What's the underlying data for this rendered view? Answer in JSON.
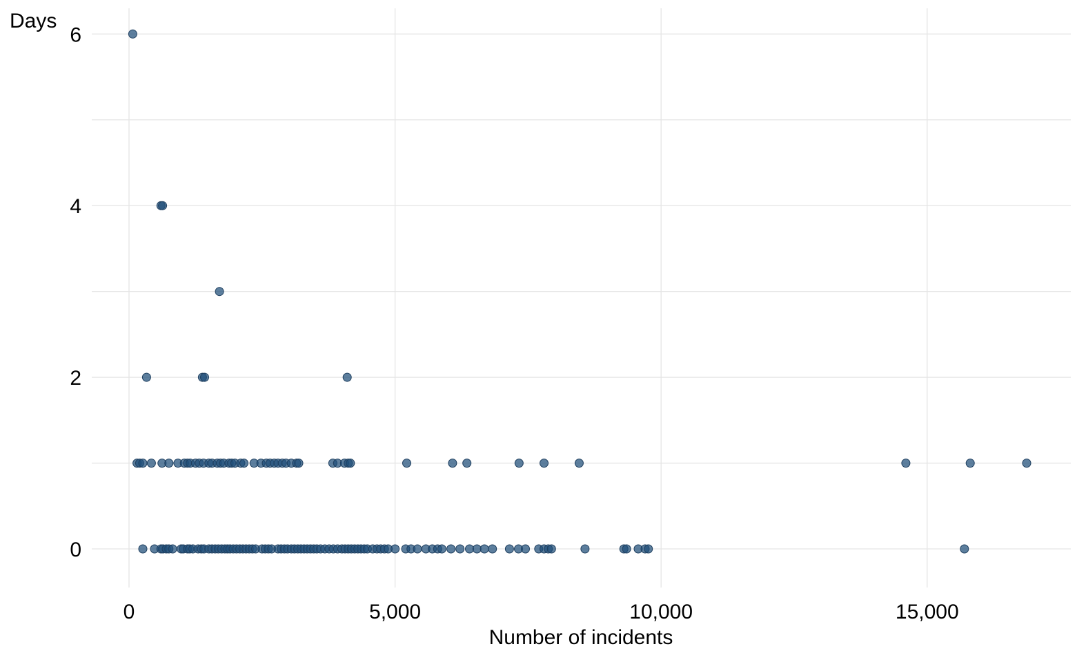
{
  "chart_data": {
    "type": "scatter",
    "title": "",
    "xlabel": "Number of incidents",
    "ylabel": "Days",
    "xlim": [
      -700,
      17700
    ],
    "ylim": [
      -0.45,
      6.3
    ],
    "x_ticks": [
      {
        "value": 0,
        "label": "0"
      },
      {
        "value": 5000,
        "label": "5,000"
      },
      {
        "value": 10000,
        "label": "10,000"
      },
      {
        "value": 15000,
        "label": "15,000"
      }
    ],
    "y_ticks": [
      {
        "value": 0,
        "label": "0"
      },
      {
        "value": 2,
        "label": "2"
      },
      {
        "value": 4,
        "label": "4"
      },
      {
        "value": 6,
        "label": "6"
      }
    ],
    "grid": true,
    "point_color": "#1f4e79",
    "series": [
      {
        "name": "",
        "points": [
          [
            70,
            6
          ],
          [
            600,
            4
          ],
          [
            630,
            4
          ],
          [
            1700,
            3
          ],
          [
            330,
            2
          ],
          [
            1380,
            2
          ],
          [
            1420,
            2
          ],
          [
            4100,
            2
          ],
          [
            150,
            1
          ],
          [
            200,
            1
          ],
          [
            260,
            1
          ],
          [
            420,
            1
          ],
          [
            620,
            1
          ],
          [
            750,
            1
          ],
          [
            920,
            1
          ],
          [
            1040,
            1
          ],
          [
            1100,
            1
          ],
          [
            1150,
            1
          ],
          [
            1250,
            1
          ],
          [
            1320,
            1
          ],
          [
            1400,
            1
          ],
          [
            1500,
            1
          ],
          [
            1560,
            1
          ],
          [
            1660,
            1
          ],
          [
            1720,
            1
          ],
          [
            1780,
            1
          ],
          [
            1880,
            1
          ],
          [
            1930,
            1
          ],
          [
            1990,
            1
          ],
          [
            2100,
            1
          ],
          [
            2160,
            1
          ],
          [
            2350,
            1
          ],
          [
            2480,
            1
          ],
          [
            2580,
            1
          ],
          [
            2650,
            1
          ],
          [
            2730,
            1
          ],
          [
            2800,
            1
          ],
          [
            2880,
            1
          ],
          [
            2950,
            1
          ],
          [
            3050,
            1
          ],
          [
            3150,
            1
          ],
          [
            3190,
            1
          ],
          [
            3830,
            1
          ],
          [
            3920,
            1
          ],
          [
            4050,
            1
          ],
          [
            4120,
            1
          ],
          [
            4160,
            1
          ],
          [
            5220,
            1
          ],
          [
            6080,
            1
          ],
          [
            6350,
            1
          ],
          [
            7330,
            1
          ],
          [
            7800,
            1
          ],
          [
            8460,
            1
          ],
          [
            14600,
            1
          ],
          [
            15810,
            1
          ],
          [
            16870,
            1
          ],
          [
            260,
            0
          ],
          [
            480,
            0
          ],
          [
            600,
            0
          ],
          [
            640,
            0
          ],
          [
            700,
            0
          ],
          [
            750,
            0
          ],
          [
            820,
            0
          ],
          [
            980,
            0
          ],
          [
            1020,
            0
          ],
          [
            1100,
            0
          ],
          [
            1140,
            0
          ],
          [
            1200,
            0
          ],
          [
            1300,
            0
          ],
          [
            1360,
            0
          ],
          [
            1410,
            0
          ],
          [
            1500,
            0
          ],
          [
            1560,
            0
          ],
          [
            1620,
            0
          ],
          [
            1680,
            0
          ],
          [
            1740,
            0
          ],
          [
            1800,
            0
          ],
          [
            1850,
            0
          ],
          [
            1900,
            0
          ],
          [
            1960,
            0
          ],
          [
            2020,
            0
          ],
          [
            2080,
            0
          ],
          [
            2140,
            0
          ],
          [
            2200,
            0
          ],
          [
            2260,
            0
          ],
          [
            2320,
            0
          ],
          [
            2380,
            0
          ],
          [
            2500,
            0
          ],
          [
            2560,
            0
          ],
          [
            2620,
            0
          ],
          [
            2680,
            0
          ],
          [
            2800,
            0
          ],
          [
            2860,
            0
          ],
          [
            2920,
            0
          ],
          [
            2980,
            0
          ],
          [
            3050,
            0
          ],
          [
            3110,
            0
          ],
          [
            3170,
            0
          ],
          [
            3230,
            0
          ],
          [
            3290,
            0
          ],
          [
            3350,
            0
          ],
          [
            3410,
            0
          ],
          [
            3470,
            0
          ],
          [
            3530,
            0
          ],
          [
            3600,
            0
          ],
          [
            3680,
            0
          ],
          [
            3760,
            0
          ],
          [
            3840,
            0
          ],
          [
            3920,
            0
          ],
          [
            4000,
            0
          ],
          [
            4060,
            0
          ],
          [
            4120,
            0
          ],
          [
            4180,
            0
          ],
          [
            4240,
            0
          ],
          [
            4300,
            0
          ],
          [
            4360,
            0
          ],
          [
            4420,
            0
          ],
          [
            4480,
            0
          ],
          [
            4580,
            0
          ],
          [
            4660,
            0
          ],
          [
            4730,
            0
          ],
          [
            4800,
            0
          ],
          [
            4870,
            0
          ],
          [
            5000,
            0
          ],
          [
            5200,
            0
          ],
          [
            5300,
            0
          ],
          [
            5420,
            0
          ],
          [
            5580,
            0
          ],
          [
            5700,
            0
          ],
          [
            5800,
            0
          ],
          [
            5880,
            0
          ],
          [
            6050,
            0
          ],
          [
            6220,
            0
          ],
          [
            6400,
            0
          ],
          [
            6540,
            0
          ],
          [
            6680,
            0
          ],
          [
            6830,
            0
          ],
          [
            7150,
            0
          ],
          [
            7320,
            0
          ],
          [
            7450,
            0
          ],
          [
            7700,
            0
          ],
          [
            7800,
            0
          ],
          [
            7880,
            0
          ],
          [
            7940,
            0
          ],
          [
            8570,
            0
          ],
          [
            9300,
            0
          ],
          [
            9350,
            0
          ],
          [
            9570,
            0
          ],
          [
            9700,
            0
          ],
          [
            9760,
            0
          ],
          [
            15700,
            0
          ]
        ]
      }
    ]
  }
}
